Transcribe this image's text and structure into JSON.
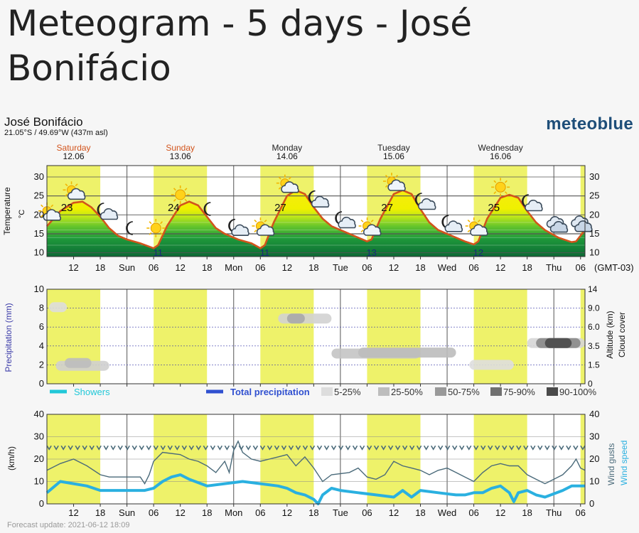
{
  "page": {
    "title": "Meteogram - 5 days - José Bonifácio"
  },
  "location": {
    "name": "José Bonifácio",
    "coords": "21.05°S / 49.69°W (437m asl)"
  },
  "brand": "meteoblue",
  "footer": "Forecast update: 2021-06-12 18:09",
  "colors": {
    "day_band": "#eef26a",
    "temp_line": "#d2541c",
    "gust_line": "#4a6a7a",
    "wind_line": "#2ab0e0",
    "precip_title": "#3a3aa8",
    "showers": "#22c8d8",
    "total_precip": "#3050d0"
  },
  "chart_data": {
    "type": "meteogram",
    "timezone": "(GMT-03)",
    "time_range_hours": [
      6,
      127
    ],
    "day_headers": [
      {
        "day": "Saturday",
        "date": "12.06",
        "color": "#d2541c"
      },
      {
        "day": "Sunday",
        "date": "13.06",
        "color": "#d2541c"
      },
      {
        "day": "Monday",
        "date": "14.06",
        "color": "#222222"
      },
      {
        "day": "Tuesday",
        "date": "15.06",
        "color": "#222222"
      },
      {
        "day": "Wednesday",
        "date": "16.06",
        "color": "#222222"
      }
    ],
    "x_tick_labels": [
      "12",
      "18",
      "Sun",
      "06",
      "12",
      "18",
      "Mon",
      "06",
      "12",
      "18",
      "Tue",
      "06",
      "12",
      "18",
      "Wed",
      "06",
      "12",
      "18",
      "Thu",
      "06"
    ],
    "day_bands_hours": [
      [
        6,
        18
      ],
      [
        30,
        42
      ],
      [
        54,
        66
      ],
      [
        78,
        90
      ],
      [
        102,
        114
      ],
      [
        126,
        127
      ]
    ],
    "temperature": {
      "unit": "°C",
      "ylabel": "Temperature °C",
      "ylim": [
        9,
        33
      ],
      "ticks": [
        10,
        15,
        20,
        25,
        30
      ],
      "series": [
        [
          6,
          17
        ],
        [
          9,
          21
        ],
        [
          12,
          23.2
        ],
        [
          14,
          23.5
        ],
        [
          16,
          22
        ],
        [
          18,
          19.5
        ],
        [
          20,
          16.5
        ],
        [
          22,
          14.5
        ],
        [
          24,
          13.5
        ],
        [
          27,
          12.5
        ],
        [
          30,
          11.2
        ],
        [
          31,
          12
        ],
        [
          33,
          17
        ],
        [
          36,
          22.5
        ],
        [
          38,
          23.5
        ],
        [
          40,
          22.5
        ],
        [
          42,
          19.5
        ],
        [
          44,
          16.5
        ],
        [
          46,
          15
        ],
        [
          49,
          13.5
        ],
        [
          52,
          12.5
        ],
        [
          54,
          11.2
        ],
        [
          55,
          12
        ],
        [
          57,
          18
        ],
        [
          60,
          25
        ],
        [
          62,
          26.5
        ],
        [
          64,
          25.5
        ],
        [
          66,
          22
        ],
        [
          68,
          19
        ],
        [
          70,
          17
        ],
        [
          73,
          15.5
        ],
        [
          76,
          14
        ],
        [
          78,
          13
        ],
        [
          79,
          13.5
        ],
        [
          81,
          19
        ],
        [
          84,
          25.5
        ],
        [
          86,
          26.5
        ],
        [
          88,
          25.5
        ],
        [
          90,
          21.5
        ],
        [
          92,
          18
        ],
        [
          94,
          16
        ],
        [
          97,
          14.5
        ],
        [
          100,
          13
        ],
        [
          102,
          12.2
        ],
        [
          103,
          13
        ],
        [
          105,
          19
        ],
        [
          108,
          24.5
        ],
        [
          110,
          25.3
        ],
        [
          112,
          24.5
        ],
        [
          114,
          21
        ],
        [
          116,
          18
        ],
        [
          118,
          16
        ],
        [
          121,
          14
        ],
        [
          124,
          12.8
        ],
        [
          125,
          13
        ],
        [
          126,
          14.5
        ],
        [
          127,
          16
        ]
      ],
      "min_max_labels": [
        {
          "t": 10.5,
          "v": "23"
        },
        {
          "t": 31,
          "v": "11"
        },
        {
          "t": 34.5,
          "v": "24"
        },
        {
          "t": 55,
          "v": "11"
        },
        {
          "t": 58.5,
          "v": "27"
        },
        {
          "t": 79,
          "v": "13"
        },
        {
          "t": 82.5,
          "v": "27"
        },
        {
          "t": 103,
          "v": "12"
        },
        {
          "t": 106.5,
          "v": "25"
        }
      ],
      "weather_icons": [
        {
          "t": 6.5,
          "icon": "sun-cloud-icon"
        },
        {
          "t": 12,
          "icon": "sun-cloud-icon"
        },
        {
          "t": 19,
          "icon": "moon-cloud-icon"
        },
        {
          "t": 25,
          "icon": "moon-icon"
        },
        {
          "t": 30.5,
          "icon": "sun-icon"
        },
        {
          "t": 36,
          "icon": "sun-icon"
        },
        {
          "t": 42.5,
          "icon": "moon-icon"
        },
        {
          "t": 48.5,
          "icon": "moon-cloud-icon"
        },
        {
          "t": 54.5,
          "icon": "sun-cloud-icon"
        },
        {
          "t": 60,
          "icon": "sun-cloud-icon"
        },
        {
          "t": 66.5,
          "icon": "moon-cloud-icon"
        },
        {
          "t": 72.5,
          "icon": "moon-cloud-icon"
        },
        {
          "t": 78.5,
          "icon": "sun-cloud-icon"
        },
        {
          "t": 84,
          "icon": "sun-cloud-icon"
        },
        {
          "t": 90.5,
          "icon": "moon-cloud-icon"
        },
        {
          "t": 96.5,
          "icon": "moon-cloud-icon"
        },
        {
          "t": 102.5,
          "icon": "sun-cloud-icon"
        },
        {
          "t": 108,
          "icon": "sun-icon"
        },
        {
          "t": 114.5,
          "icon": "moon-cloud-icon"
        },
        {
          "t": 120.5,
          "icon": "cloud-icon"
        },
        {
          "t": 126,
          "icon": "cloud-icon"
        }
      ]
    },
    "precipitation": {
      "ylabel": "Precipitation (mm)",
      "ylim": [
        0,
        10
      ],
      "ticks": [
        0,
        2,
        4,
        6,
        8,
        10
      ],
      "altitude_label": "Altitude (km)",
      "cloud_label": "Cloud cover",
      "altitude_ticks": [
        "0",
        "1.5",
        "3.5",
        "6.0",
        "9.0",
        "14"
      ],
      "legend": [
        {
          "label": "Showers",
          "color": "#22c8d8",
          "kind": "line"
        },
        {
          "label": "Total precipitation",
          "color": "#3050d0",
          "kind": "line"
        },
        {
          "label": "5-25%",
          "color": "#dddddd",
          "kind": "box"
        },
        {
          "label": "25-50%",
          "color": "#bdbdbd",
          "kind": "box"
        },
        {
          "label": "50-75%",
          "color": "#999999",
          "kind": "box"
        },
        {
          "label": "75-90%",
          "color": "#707070",
          "kind": "box"
        },
        {
          "label": "90-100%",
          "color": "#4a4a4a",
          "kind": "box"
        }
      ],
      "cloud_patches": [
        {
          "t0": 6.5,
          "t1": 10.5,
          "level": 8.1,
          "shade": "#dddddd"
        },
        {
          "t0": 8,
          "t1": 20,
          "level": 1.9,
          "shade": "#cfcfcf"
        },
        {
          "t0": 10,
          "t1": 16,
          "level": 2.2,
          "shade": "#bdbdbd"
        },
        {
          "t0": 58,
          "t1": 70,
          "level": 6.9,
          "shade": "#d2d2d2"
        },
        {
          "t0": 60,
          "t1": 64,
          "level": 6.9,
          "shade": "#a8a8a8"
        },
        {
          "t0": 70,
          "t1": 90,
          "level": 3.2,
          "shade": "#c4c4c4"
        },
        {
          "t0": 76,
          "t1": 98,
          "level": 3.3,
          "shade": "#bdbdbd"
        },
        {
          "t0": 101,
          "t1": 111,
          "level": 2.0,
          "shade": "#dedede"
        },
        {
          "t0": 114,
          "t1": 127,
          "level": 4.3,
          "shade": "#d6d6d6"
        },
        {
          "t0": 116,
          "t1": 126,
          "level": 4.3,
          "shade": "#888888"
        },
        {
          "t0": 118,
          "t1": 124,
          "level": 4.3,
          "shade": "#4a4a4a"
        }
      ]
    },
    "wind": {
      "ylabel": "(km/h)",
      "ylim": [
        0,
        40
      ],
      "ticks": [
        0,
        10,
        20,
        30,
        40
      ],
      "right_labels": [
        "Wind gusts",
        "Wind speed"
      ],
      "arrow_level": 25,
      "gusts": [
        [
          6,
          15
        ],
        [
          9,
          18
        ],
        [
          12,
          20
        ],
        [
          15,
          17
        ],
        [
          18,
          13
        ],
        [
          20,
          12
        ],
        [
          24,
          12
        ],
        [
          27,
          12
        ],
        [
          28,
          9
        ],
        [
          29,
          13
        ],
        [
          30,
          19
        ],
        [
          32,
          23
        ],
        [
          36,
          22
        ],
        [
          38,
          20
        ],
        [
          40,
          19
        ],
        [
          42,
          17
        ],
        [
          44,
          14
        ],
        [
          46,
          19
        ],
        [
          47,
          14
        ],
        [
          48,
          24
        ],
        [
          49,
          28
        ],
        [
          50,
          23
        ],
        [
          52,
          20
        ],
        [
          54,
          19
        ],
        [
          56,
          20
        ],
        [
          58,
          21
        ],
        [
          60,
          22
        ],
        [
          62,
          17
        ],
        [
          64,
          21
        ],
        [
          66,
          16
        ],
        [
          68,
          10
        ],
        [
          70,
          13
        ],
        [
          74,
          14
        ],
        [
          76,
          16
        ],
        [
          78,
          12
        ],
        [
          80,
          11
        ],
        [
          82,
          13
        ],
        [
          84,
          19
        ],
        [
          86,
          17
        ],
        [
          88,
          16
        ],
        [
          90,
          15
        ],
        [
          92,
          13
        ],
        [
          94,
          15
        ],
        [
          96,
          16
        ],
        [
          98,
          14
        ],
        [
          100,
          12
        ],
        [
          102,
          10
        ],
        [
          104,
          14
        ],
        [
          106,
          17
        ],
        [
          108,
          18
        ],
        [
          110,
          17
        ],
        [
          112,
          17
        ],
        [
          114,
          13
        ],
        [
          116,
          11
        ],
        [
          118,
          9
        ],
        [
          120,
          11
        ],
        [
          122,
          13
        ],
        [
          124,
          17
        ],
        [
          125,
          20
        ],
        [
          126,
          16
        ],
        [
          127,
          15
        ]
      ],
      "speed": [
        [
          6,
          5
        ],
        [
          9,
          10
        ],
        [
          12,
          9
        ],
        [
          15,
          8
        ],
        [
          18,
          6
        ],
        [
          24,
          6
        ],
        [
          28,
          6
        ],
        [
          30,
          7
        ],
        [
          32,
          10
        ],
        [
          34,
          12
        ],
        [
          36,
          13
        ],
        [
          38,
          11
        ],
        [
          42,
          8
        ],
        [
          46,
          9
        ],
        [
          50,
          10
        ],
        [
          54,
          9
        ],
        [
          58,
          8
        ],
        [
          60,
          7
        ],
        [
          62,
          5
        ],
        [
          64,
          4
        ],
        [
          66,
          2
        ],
        [
          67,
          0
        ],
        [
          68,
          4
        ],
        [
          70,
          7
        ],
        [
          72,
          6
        ],
        [
          76,
          5
        ],
        [
          80,
          4
        ],
        [
          84,
          3
        ],
        [
          86,
          6
        ],
        [
          88,
          3
        ],
        [
          90,
          6
        ],
        [
          94,
          5
        ],
        [
          98,
          4
        ],
        [
          100,
          4
        ],
        [
          102,
          5
        ],
        [
          104,
          5
        ],
        [
          106,
          7
        ],
        [
          108,
          8
        ],
        [
          110,
          5
        ],
        [
          111,
          1
        ],
        [
          112,
          5
        ],
        [
          114,
          6
        ],
        [
          116,
          4
        ],
        [
          118,
          3
        ],
        [
          122,
          6
        ],
        [
          124,
          8
        ],
        [
          127,
          8
        ]
      ]
    }
  }
}
